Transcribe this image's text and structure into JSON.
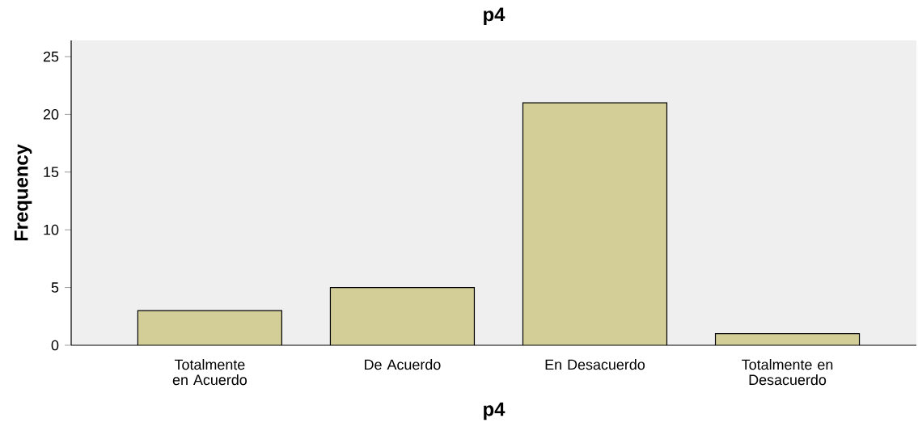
{
  "chart_data": {
    "type": "bar",
    "title": "p4",
    "xlabel": "p4",
    "ylabel": "Frequency",
    "categories": [
      "Totalmente en Acuerdo",
      "De Acuerdo",
      "En Desacuerdo",
      "Totalmente en Desacuerdo"
    ],
    "values": [
      3,
      5,
      21,
      1
    ],
    "color": "#d3ce97",
    "ylim": [
      0,
      26.4
    ],
    "yticks": [
      0,
      5,
      10,
      15,
      20,
      25
    ]
  }
}
